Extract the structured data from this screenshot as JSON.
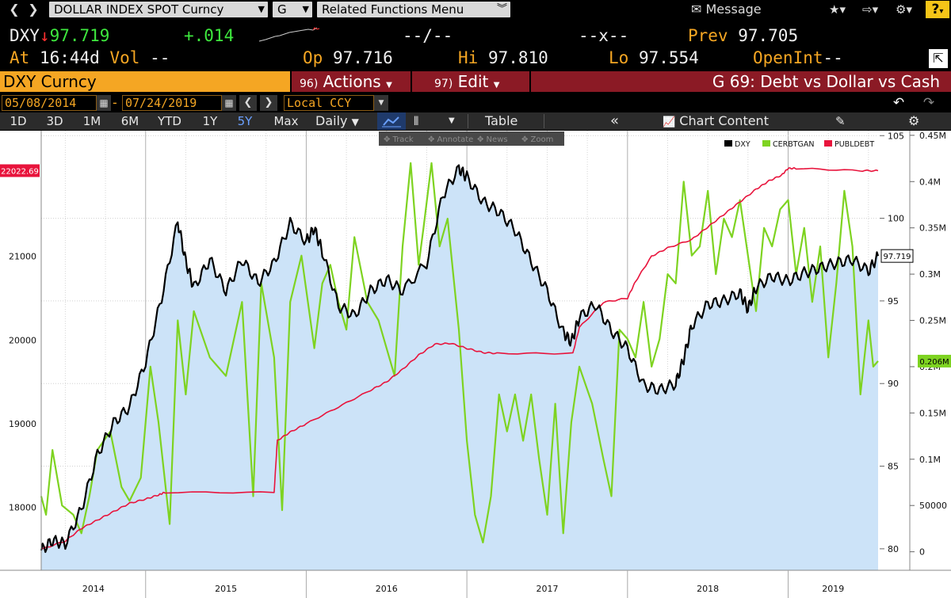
{
  "toolbar": {
    "security": "DOLLAR INDEX SPOT Curncy",
    "function": "G",
    "related": "Related Functions Menu",
    "message": "Message"
  },
  "quote": {
    "ticker": "DXY",
    "arrow": "↓",
    "last": "97.719",
    "change": "+.014",
    "bid_ask": "--/--",
    "size": "--x--",
    "prev_label": "Prev",
    "prev": "97.705",
    "at_label": "At",
    "time": "16:44d",
    "vol_label": "Vol",
    "vol": "--",
    "op_label": "Op",
    "open": "97.716",
    "hi_label": "Hi",
    "high": "97.810",
    "lo_label": "Lo",
    "low": "97.554",
    "oi_label": "OpenInt",
    "oi": "--"
  },
  "menubar": {
    "security": "DXY Curncy",
    "actions_num": "96)",
    "actions": "Actions",
    "edit_num": "97)",
    "edit": "Edit",
    "chart_name": "G 69: Debt vs Dollar vs Cash"
  },
  "range": {
    "start": "05/08/2014",
    "dash": "-",
    "end": "07/24/2019",
    "currency": "Local CCY"
  },
  "periods": [
    {
      "label": "1D"
    },
    {
      "label": "3D"
    },
    {
      "label": "1M"
    },
    {
      "label": "6M"
    },
    {
      "label": "YTD"
    },
    {
      "label": "1Y"
    },
    {
      "label": "5Y",
      "active": true
    },
    {
      "label": "Max"
    }
  ],
  "bar5": {
    "frequency": "Daily",
    "table": "Table",
    "chart_content": "Chart Content"
  },
  "overlay_tools": [
    "Track",
    "Annotate",
    "News",
    "Zoom"
  ],
  "chart_data": {
    "type": "line",
    "x_ticks": [
      "2014",
      "2015",
      "2016",
      "2017",
      "2018",
      "2019"
    ],
    "x_range": [
      2014.35,
      2019.56
    ],
    "legend": [
      "DXY",
      "CERBTGAN",
      "PUBLDEBT"
    ],
    "legend_position": "top-right",
    "colors": {
      "DXY": "#000000",
      "CERBTGAN": "#7ed321",
      "PUBLDEBT": "#e8143c",
      "fill": "#cce3f8"
    },
    "left_axis": {
      "ticks": [
        "18000",
        "19000",
        "20000",
        "21000"
      ],
      "range": [
        17250,
        22500
      ],
      "marker": "22022.69"
    },
    "mid_axis": {
      "ticks": [
        "80",
        "85",
        "90",
        "95",
        "100",
        "105"
      ],
      "range": [
        78.7,
        105.3
      ],
      "last_value_label": "97.719"
    },
    "right_axis": {
      "ticks": [
        "0",
        "50000",
        "0.1M",
        "0.15M",
        "0.2M",
        "0.25M",
        "0.3M",
        "0.35M",
        "0.4M",
        "0.45M"
      ],
      "range": [
        -20000,
        455000
      ],
      "last_value_label": "0.206M"
    },
    "series": [
      {
        "name": "DXY",
        "axis": "mid",
        "points": [
          [
            2014.35,
            79.9
          ],
          [
            2014.42,
            80.5
          ],
          [
            2014.5,
            80.3
          ],
          [
            2014.6,
            82.4
          ],
          [
            2014.7,
            85.7
          ],
          [
            2014.8,
            87.6
          ],
          [
            2014.9,
            88.6
          ],
          [
            2015.0,
            91.3
          ],
          [
            2015.1,
            95.2
          ],
          [
            2015.2,
            99.8
          ],
          [
            2015.25,
            97.4
          ],
          [
            2015.3,
            95.8
          ],
          [
            2015.4,
            97.5
          ],
          [
            2015.5,
            95.6
          ],
          [
            2015.6,
            97.5
          ],
          [
            2015.7,
            96.1
          ],
          [
            2015.8,
            97.3
          ],
          [
            2015.9,
            99.7
          ],
          [
            2016.0,
            98.6
          ],
          [
            2016.05,
            99.4
          ],
          [
            2016.1,
            98.0
          ],
          [
            2016.2,
            94.7
          ],
          [
            2016.3,
            94.1
          ],
          [
            2016.4,
            95.6
          ],
          [
            2016.5,
            96.3
          ],
          [
            2016.6,
            95.6
          ],
          [
            2016.75,
            97.3
          ],
          [
            2016.85,
            101.4
          ],
          [
            2016.95,
            103.0
          ],
          [
            2017.0,
            102.5
          ],
          [
            2017.1,
            101.0
          ],
          [
            2017.2,
            100.4
          ],
          [
            2017.3,
            99.3
          ],
          [
            2017.4,
            97.4
          ],
          [
            2017.5,
            95.6
          ],
          [
            2017.6,
            93.1
          ],
          [
            2017.65,
            92.5
          ],
          [
            2017.7,
            94.0
          ],
          [
            2017.8,
            94.8
          ],
          [
            2017.9,
            93.2
          ],
          [
            2018.0,
            92.1
          ],
          [
            2018.1,
            89.9
          ],
          [
            2018.2,
            89.6
          ],
          [
            2018.3,
            90.0
          ],
          [
            2018.35,
            91.5
          ],
          [
            2018.4,
            93.5
          ],
          [
            2018.5,
            94.8
          ],
          [
            2018.6,
            95.0
          ],
          [
            2018.7,
            95.5
          ],
          [
            2018.75,
            94.5
          ],
          [
            2018.8,
            95.8
          ],
          [
            2018.9,
            96.5
          ],
          [
            2019.0,
            96.2
          ],
          [
            2019.1,
            96.7
          ],
          [
            2019.2,
            97.0
          ],
          [
            2019.3,
            97.3
          ],
          [
            2019.4,
            97.5
          ],
          [
            2019.5,
            96.8
          ],
          [
            2019.56,
            97.72
          ]
        ]
      },
      {
        "name": "CERBTGAN",
        "axis": "right",
        "points": [
          [
            2014.35,
            60000
          ],
          [
            2014.38,
            40000
          ],
          [
            2014.42,
            110000
          ],
          [
            2014.48,
            50000
          ],
          [
            2014.55,
            40000
          ],
          [
            2014.6,
            20000
          ],
          [
            2014.65,
            60000
          ],
          [
            2014.7,
            110000
          ],
          [
            2014.78,
            130000
          ],
          [
            2014.85,
            70000
          ],
          [
            2014.9,
            55000
          ],
          [
            2014.97,
            80000
          ],
          [
            2015.03,
            200000
          ],
          [
            2015.08,
            140000
          ],
          [
            2015.15,
            30000
          ],
          [
            2015.2,
            250000
          ],
          [
            2015.25,
            170000
          ],
          [
            2015.3,
            260000
          ],
          [
            2015.4,
            210000
          ],
          [
            2015.5,
            190000
          ],
          [
            2015.6,
            270000
          ],
          [
            2015.67,
            60000
          ],
          [
            2015.72,
            290000
          ],
          [
            2015.8,
            210000
          ],
          [
            2015.85,
            45000
          ],
          [
            2015.9,
            270000
          ],
          [
            2015.97,
            320000
          ],
          [
            2016.05,
            220000
          ],
          [
            2016.1,
            290000
          ],
          [
            2016.15,
            310000
          ],
          [
            2016.2,
            270000
          ],
          [
            2016.25,
            240000
          ],
          [
            2016.3,
            340000
          ],
          [
            2016.38,
            270000
          ],
          [
            2016.45,
            250000
          ],
          [
            2016.55,
            190000
          ],
          [
            2016.6,
            330000
          ],
          [
            2016.65,
            420000
          ],
          [
            2016.7,
            310000
          ],
          [
            2016.73,
            350000
          ],
          [
            2016.78,
            420000
          ],
          [
            2016.83,
            330000
          ],
          [
            2016.88,
            360000
          ],
          [
            2016.95,
            240000
          ],
          [
            2017.0,
            120000
          ],
          [
            2017.05,
            40000
          ],
          [
            2017.1,
            10000
          ],
          [
            2017.15,
            60000
          ],
          [
            2017.2,
            170000
          ],
          [
            2017.25,
            130000
          ],
          [
            2017.3,
            170000
          ],
          [
            2017.35,
            120000
          ],
          [
            2017.4,
            170000
          ],
          [
            2017.45,
            100000
          ],
          [
            2017.5,
            40000
          ],
          [
            2017.55,
            160000
          ],
          [
            2017.6,
            20000
          ],
          [
            2017.65,
            140000
          ],
          [
            2017.7,
            200000
          ],
          [
            2017.78,
            160000
          ],
          [
            2017.85,
            100000
          ],
          [
            2017.9,
            60000
          ],
          [
            2017.95,
            240000
          ],
          [
            2018.0,
            230000
          ],
          [
            2018.05,
            210000
          ],
          [
            2018.1,
            270000
          ],
          [
            2018.15,
            200000
          ],
          [
            2018.2,
            230000
          ],
          [
            2018.25,
            300000
          ],
          [
            2018.3,
            290000
          ],
          [
            2018.35,
            400000
          ],
          [
            2018.4,
            320000
          ],
          [
            2018.45,
            330000
          ],
          [
            2018.5,
            390000
          ],
          [
            2018.55,
            300000
          ],
          [
            2018.6,
            360000
          ],
          [
            2018.65,
            340000
          ],
          [
            2018.7,
            380000
          ],
          [
            2018.75,
            320000
          ],
          [
            2018.8,
            260000
          ],
          [
            2018.85,
            350000
          ],
          [
            2018.9,
            330000
          ],
          [
            2018.95,
            370000
          ],
          [
            2019.0,
            380000
          ],
          [
            2019.05,
            300000
          ],
          [
            2019.1,
            350000
          ],
          [
            2019.15,
            270000
          ],
          [
            2019.2,
            330000
          ],
          [
            2019.25,
            210000
          ],
          [
            2019.3,
            290000
          ],
          [
            2019.35,
            390000
          ],
          [
            2019.4,
            330000
          ],
          [
            2019.45,
            170000
          ],
          [
            2019.5,
            250000
          ],
          [
            2019.53,
            200000
          ],
          [
            2019.56,
            206000
          ]
        ]
      },
      {
        "name": "PUBLDEBT",
        "axis": "left",
        "points": [
          [
            2014.35,
            17500
          ],
          [
            2014.5,
            17600
          ],
          [
            2014.6,
            17750
          ],
          [
            2014.7,
            17850
          ],
          [
            2014.8,
            17950
          ],
          [
            2014.9,
            18050
          ],
          [
            2015.0,
            18100
          ],
          [
            2015.08,
            18150
          ],
          [
            2015.12,
            18180
          ],
          [
            2015.8,
            18180
          ],
          [
            2015.82,
            18800
          ],
          [
            2015.9,
            18900
          ],
          [
            2016.0,
            19000
          ],
          [
            2016.2,
            19200
          ],
          [
            2016.4,
            19400
          ],
          [
            2016.5,
            19500
          ],
          [
            2016.6,
            19650
          ],
          [
            2016.7,
            19820
          ],
          [
            2016.8,
            19950
          ],
          [
            2016.9,
            19960
          ],
          [
            2017.0,
            19900
          ],
          [
            2017.1,
            19850
          ],
          [
            2017.2,
            19840
          ],
          [
            2017.66,
            19840
          ],
          [
            2017.7,
            20150
          ],
          [
            2017.85,
            20450
          ],
          [
            2018.0,
            20500
          ],
          [
            2018.05,
            20700
          ],
          [
            2018.15,
            21000
          ],
          [
            2018.25,
            21100
          ],
          [
            2018.4,
            21200
          ],
          [
            2018.5,
            21350
          ],
          [
            2018.6,
            21500
          ],
          [
            2018.7,
            21650
          ],
          [
            2018.8,
            21800
          ],
          [
            2018.88,
            21900
          ],
          [
            2018.96,
            21970
          ],
          [
            2019.0,
            22050
          ],
          [
            2019.05,
            22050
          ],
          [
            2019.45,
            22022
          ],
          [
            2019.56,
            22022
          ]
        ]
      }
    ]
  }
}
